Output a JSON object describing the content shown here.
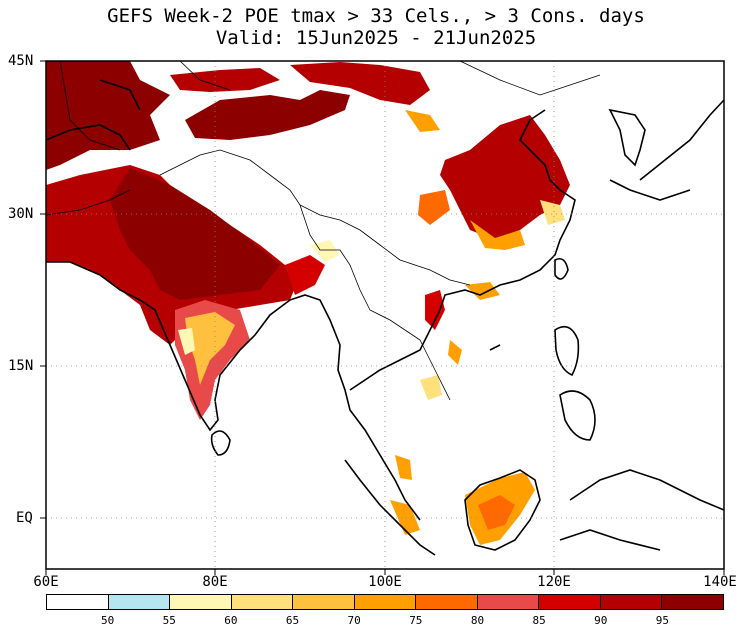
{
  "title": {
    "line1": "GEFS Week-2 POE tmax > 33 Cels., > 3 Cons. days",
    "line2": "Valid: 15Jun2025 - 21Jun2025"
  },
  "axes": {
    "lat_labels": [
      "45N",
      "30N",
      "15N",
      "EQ"
    ],
    "lon_labels": [
      "60E",
      "80E",
      "100E",
      "120E",
      "140E"
    ]
  },
  "colorbar": {
    "colors": [
      "#ffffff",
      "#b4e6f0",
      "#fff8b4",
      "#ffe07a",
      "#ffc040",
      "#ffa000",
      "#ff6a00",
      "#e84a4a",
      "#d40000",
      "#b40000",
      "#8c0000"
    ],
    "labels": [
      "50",
      "55",
      "60",
      "65",
      "70",
      "75",
      "80",
      "85",
      "90",
      "95"
    ]
  }
}
